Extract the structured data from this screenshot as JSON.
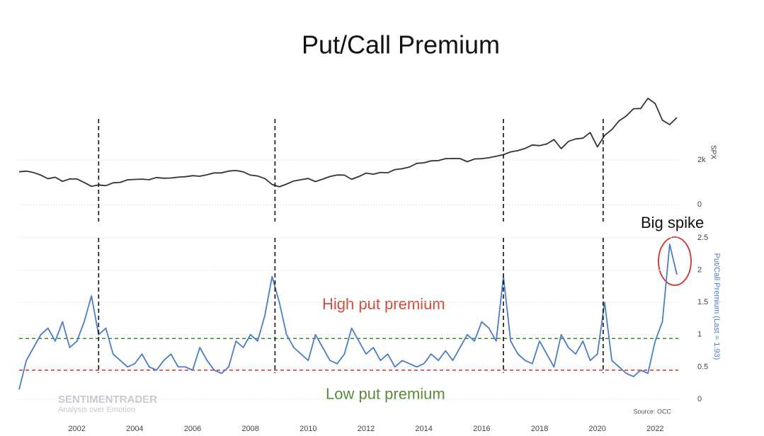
{
  "chart_data": [
    {
      "type": "line",
      "y_axis_title": "SPX",
      "x": [
        2000,
        2000.25,
        2000.5,
        2000.75,
        2001,
        2001.25,
        2001.5,
        2001.75,
        2002,
        2002.25,
        2002.5,
        2002.75,
        2003,
        2003.25,
        2003.5,
        2003.75,
        2004,
        2004.25,
        2004.5,
        2004.75,
        2005,
        2005.25,
        2005.5,
        2005.75,
        2006,
        2006.25,
        2006.5,
        2006.75,
        2007,
        2007.25,
        2007.5,
        2007.75,
        2008,
        2008.25,
        2008.5,
        2008.75,
        2009,
        2009.25,
        2009.5,
        2009.75,
        2010,
        2010.25,
        2010.5,
        2010.75,
        2011,
        2011.25,
        2011.5,
        2011.75,
        2012,
        2012.25,
        2012.5,
        2012.75,
        2013,
        2013.25,
        2013.5,
        2013.75,
        2014,
        2014.25,
        2014.5,
        2014.75,
        2015,
        2015.25,
        2015.5,
        2015.75,
        2016,
        2016.25,
        2016.5,
        2016.75,
        2017,
        2017.25,
        2017.5,
        2017.75,
        2018,
        2018.25,
        2018.5,
        2018.75,
        2019,
        2019.25,
        2019.5,
        2019.75,
        2020,
        2020.25,
        2020.5,
        2020.75,
        2021,
        2021.25,
        2021.5,
        2021.75,
        2022,
        2022.25,
        2022.5,
        2022.75
      ],
      "series": [
        {
          "name": "SPX",
          "color": "#333333",
          "values": [
            1469,
            1499,
            1436,
            1320,
            1160,
            1224,
            1040,
            1148,
            1147,
            990,
            815,
            880,
            848,
            975,
            996,
            1112,
            1126,
            1140,
            1114,
            1212,
            1181,
            1191,
            1228,
            1248,
            1295,
            1270,
            1336,
            1418,
            1420,
            1503,
            1527,
            1468,
            1322,
            1280,
            1166,
            903,
            797,
            919,
            1057,
            1115,
            1169,
            1031,
            1141,
            1258,
            1326,
            1321,
            1131,
            1258,
            1408,
            1362,
            1441,
            1426,
            1569,
            1606,
            1682,
            1848,
            1872,
            1960,
            1972,
            2059,
            2068,
            2063,
            1920,
            2044,
            2060,
            2099,
            2168,
            2239,
            2363,
            2423,
            2519,
            2674,
            2640,
            2718,
            2914,
            2507,
            2834,
            2942,
            2977,
            3231,
            2585,
            3100,
            3363,
            3756,
            3973,
            4298,
            4308,
            4766,
            4530,
            3785,
            3586,
            3900
          ]
        }
      ],
      "xlim": [
        2000,
        2022.8
      ],
      "ylim": [
        0,
        5000
      ],
      "yticks": [
        0,
        {
          "value": 2000,
          "label": "2k"
        }
      ],
      "grid": true,
      "markers": [
        2002.75,
        2008.85,
        2016.75,
        2020.2
      ]
    },
    {
      "type": "line",
      "title": "Put/Call Premium",
      "y_axis_title": "Put/Call Premium (Last = 1.93)",
      "x": [
        2000,
        2000.25,
        2000.5,
        2000.75,
        2001,
        2001.25,
        2001.5,
        2001.75,
        2002,
        2002.25,
        2002.5,
        2002.75,
        2003,
        2003.25,
        2003.5,
        2003.75,
        2004,
        2004.25,
        2004.5,
        2004.75,
        2005,
        2005.25,
        2005.5,
        2005.75,
        2006,
        2006.25,
        2006.5,
        2006.75,
        2007,
        2007.25,
        2007.5,
        2007.75,
        2008,
        2008.25,
        2008.5,
        2008.75,
        2009,
        2009.25,
        2009.5,
        2009.75,
        2010,
        2010.25,
        2010.5,
        2010.75,
        2011,
        2011.25,
        2011.5,
        2011.75,
        2012,
        2012.25,
        2012.5,
        2012.75,
        2013,
        2013.25,
        2013.5,
        2013.75,
        2014,
        2014.25,
        2014.5,
        2014.75,
        2015,
        2015.25,
        2015.5,
        2015.75,
        2016,
        2016.25,
        2016.5,
        2016.75,
        2017,
        2017.25,
        2017.5,
        2017.75,
        2018,
        2018.25,
        2018.5,
        2018.75,
        2019,
        2019.25,
        2019.5,
        2019.75,
        2020,
        2020.25,
        2020.5,
        2020.75,
        2021,
        2021.25,
        2021.5,
        2021.75,
        2022,
        2022.25,
        2022.5,
        2022.75
      ],
      "series": [
        {
          "name": "Put/Call Premium",
          "color": "#4a7cc7",
          "values": [
            0.15,
            0.6,
            0.8,
            1.0,
            1.1,
            0.9,
            1.2,
            0.8,
            0.9,
            1.2,
            1.6,
            1.0,
            1.1,
            0.7,
            0.6,
            0.5,
            0.55,
            0.7,
            0.5,
            0.45,
            0.6,
            0.7,
            0.5,
            0.5,
            0.45,
            0.8,
            0.6,
            0.45,
            0.4,
            0.5,
            0.9,
            0.8,
            1.0,
            0.9,
            1.3,
            1.9,
            1.5,
            1.0,
            0.8,
            0.7,
            0.6,
            1.0,
            0.8,
            0.6,
            0.55,
            0.7,
            1.1,
            0.9,
            0.7,
            0.8,
            0.6,
            0.7,
            0.5,
            0.6,
            0.55,
            0.5,
            0.55,
            0.7,
            0.6,
            0.75,
            0.6,
            0.8,
            1.0,
            0.9,
            1.2,
            1.1,
            0.9,
            1.9,
            0.9,
            0.7,
            0.6,
            0.55,
            0.9,
            0.7,
            0.5,
            1.0,
            0.8,
            0.7,
            0.9,
            0.6,
            0.7,
            1.5,
            0.6,
            0.5,
            0.4,
            0.35,
            0.45,
            0.4,
            0.9,
            1.2,
            2.4,
            1.93
          ]
        }
      ],
      "xlim": [
        2000,
        2022.8
      ],
      "ylim": [
        0,
        2.5
      ],
      "xticks": [
        2002,
        2004,
        2006,
        2008,
        2010,
        2012,
        2014,
        2016,
        2018,
        2020,
        2022
      ],
      "yticks": [
        0,
        0.5,
        1,
        1.5,
        2,
        2.5
      ],
      "grid": true,
      "markers": [
        2002.75,
        2008.85,
        2016.75,
        2020.2
      ],
      "hlines": [
        {
          "value": 0.94,
          "color": "#3a8a2a"
        },
        {
          "value": 0.45,
          "color": "#d03030"
        }
      ],
      "annotations": [
        "High put premium",
        "Low put premium",
        "Big spike"
      ],
      "watermark": [
        "SENTIMENTRADER",
        "Analysis over Emotion"
      ],
      "source": "Source: OCC"
    }
  ]
}
